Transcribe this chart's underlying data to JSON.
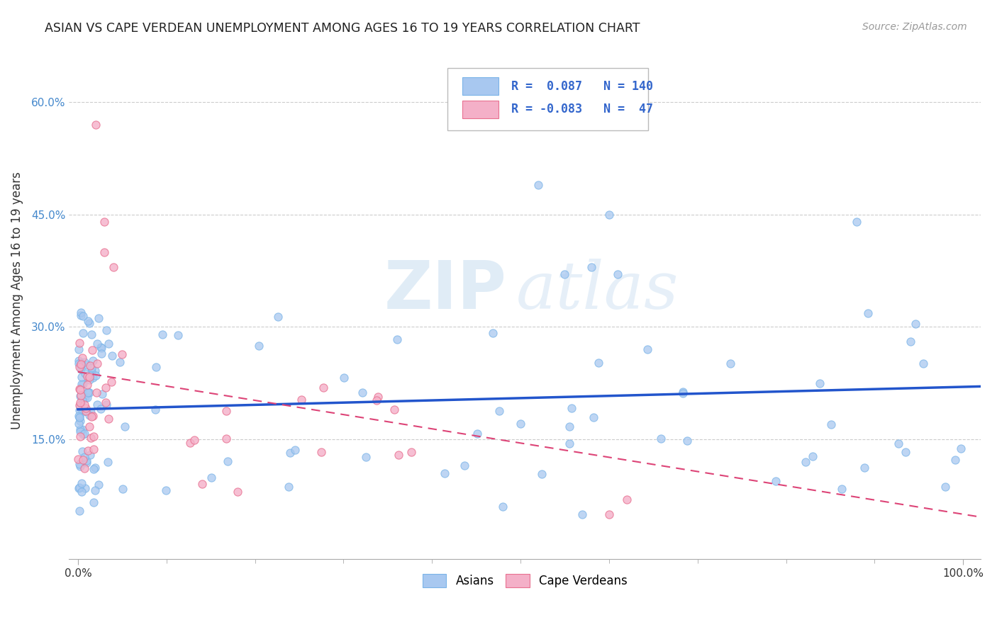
{
  "title": "ASIAN VS CAPE VERDEAN UNEMPLOYMENT AMONG AGES 16 TO 19 YEARS CORRELATION CHART",
  "source": "Source: ZipAtlas.com",
  "ylabel": "Unemployment Among Ages 16 to 19 years",
  "xlim": [
    -0.01,
    1.02
  ],
  "ylim": [
    -0.01,
    0.68
  ],
  "yticks": [
    0.15,
    0.3,
    0.45,
    0.6
  ],
  "ytick_labels": [
    "15.0%",
    "30.0%",
    "45.0%",
    "60.0%"
  ],
  "xtick_labels_ends": [
    "0.0%",
    "100.0%"
  ],
  "asian_color": "#a8c8f0",
  "asian_edge_color": "#7ab4e8",
  "cape_verdean_color": "#f4b0c8",
  "cape_verdean_edge_color": "#e87090",
  "asian_line_color": "#2255cc",
  "cape_verdean_line_color": "#dd4477",
  "R_asian": 0.087,
  "N_asian": 140,
  "R_cape_verdean": -0.083,
  "N_cape_verdean": 47,
  "watermark_zip": "ZIP",
  "watermark_atlas": "atlas",
  "background_color": "#ffffff",
  "grid_color": "#cccccc",
  "legend_R_asian": "R =  0.087",
  "legend_N_asian": "N = 140",
  "legend_R_cv": "R = -0.083",
  "legend_N_cv": "N =  47"
}
